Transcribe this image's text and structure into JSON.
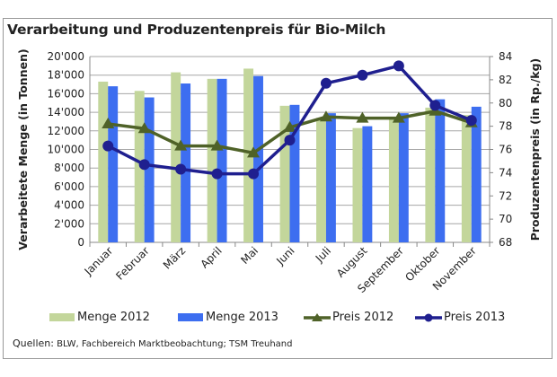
{
  "chart_data": {
    "type": "bar+line",
    "title": "Verarbeitung und Produzentenpreis für Bio-Milch",
    "categories": [
      "Januar",
      "Februar",
      "März",
      "April",
      "Mai",
      "Juni",
      "Juli",
      "August",
      "September",
      "Oktober",
      "November"
    ],
    "ylabel": "Verarbeitete Menge (in Tonnen)",
    "y2label": "Produzentenpreis (in Rp./kg)",
    "ylim": [
      0,
      20000
    ],
    "y2lim": [
      68,
      84
    ],
    "yticks": [
      "0",
      "2'000",
      "4'000",
      "6'000",
      "8'000",
      "10'000",
      "12'000",
      "14'000",
      "16'000",
      "18'000",
      "20'000"
    ],
    "y2ticks": [
      "68",
      "70",
      "72",
      "74",
      "76",
      "78",
      "80",
      "82",
      "84"
    ],
    "grid": true,
    "legend_position": "bottom",
    "series": [
      {
        "name": "Menge 2012",
        "type": "bar",
        "axis": "left",
        "color": "#c3d69b",
        "values": [
          17300,
          16300,
          18300,
          17600,
          18700,
          14700,
          13400,
          12300,
          13300,
          14500,
          13700
        ]
      },
      {
        "name": "Menge 2013",
        "type": "bar",
        "axis": "left",
        "color": "#3d6ef0",
        "values": [
          16800,
          15600,
          17100,
          17600,
          17900,
          14800,
          13900,
          12500,
          13900,
          15400,
          14600
        ]
      },
      {
        "name": "Preis 2012",
        "type": "line",
        "axis": "right",
        "marker": "triangle",
        "color": "#4f6228",
        "values": [
          78.2,
          77.8,
          76.3,
          76.3,
          75.7,
          77.9,
          78.8,
          78.7,
          78.7,
          79.3,
          78.3
        ]
      },
      {
        "name": "Preis 2013",
        "type": "line",
        "axis": "right",
        "marker": "circle",
        "color": "#1f1f8f",
        "values": [
          76.3,
          74.7,
          74.3,
          73.9,
          73.9,
          76.8,
          81.7,
          82.4,
          83.2,
          79.8,
          78.5
        ]
      }
    ]
  },
  "source": {
    "label": "Quellen:",
    "text": " BLW, Fachbereich Marktbeobachtung; TSM Treuhand"
  }
}
